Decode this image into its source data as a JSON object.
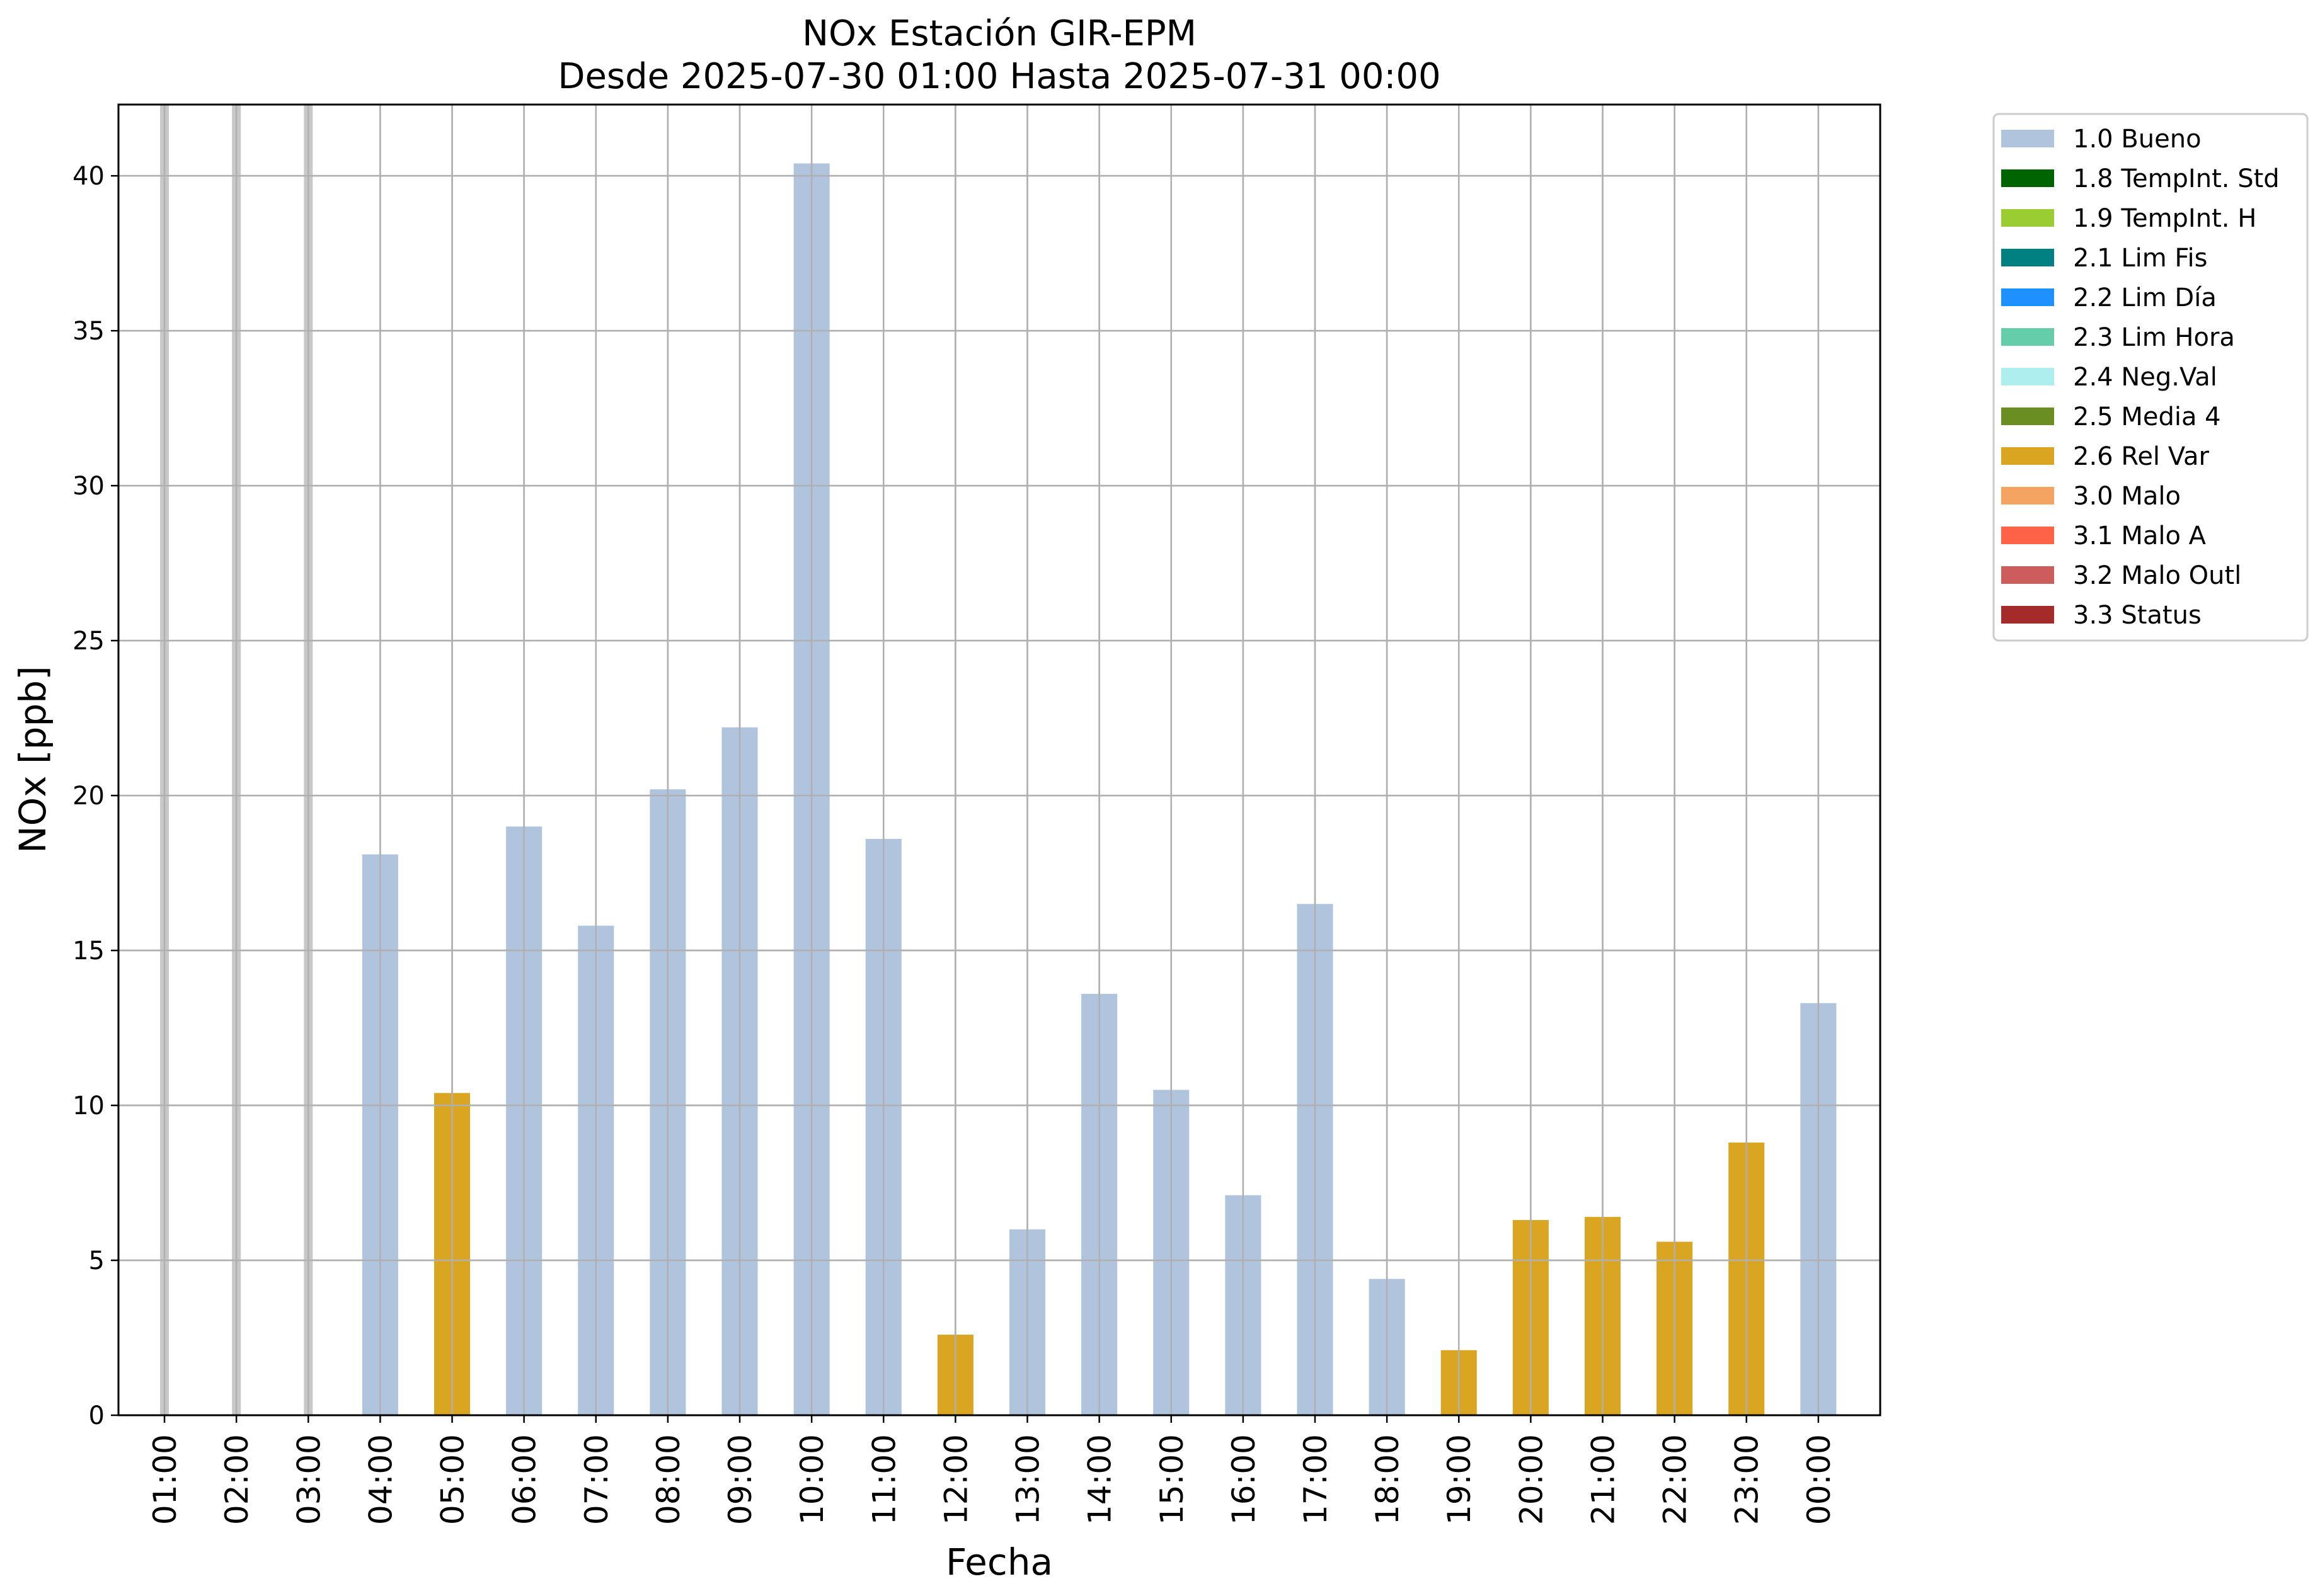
{
  "chart_data": {
    "type": "bar",
    "title": "NOx Estación GIR-EPM",
    "subtitle": "Desde 2025-07-30 01:00 Hasta 2025-07-31 00:00",
    "xlabel": "Fecha",
    "ylabel": "NOx [ppb]",
    "ylim": [
      0,
      42.3
    ],
    "yticks": [
      "0",
      "5",
      "10",
      "15",
      "20",
      "25",
      "30",
      "35",
      "40"
    ],
    "grid": true,
    "legend_position": "outside-top-right",
    "categories": [
      "01:00",
      "02:00",
      "03:00",
      "04:00",
      "05:00",
      "06:00",
      "07:00",
      "08:00",
      "09:00",
      "10:00",
      "11:00",
      "12:00",
      "13:00",
      "14:00",
      "15:00",
      "16:00",
      "17:00",
      "18:00",
      "19:00",
      "20:00",
      "21:00",
      "22:00",
      "23:00",
      "00:00"
    ],
    "values": [
      null,
      null,
      null,
      18.1,
      10.4,
      19.0,
      15.8,
      20.2,
      22.2,
      40.4,
      18.6,
      2.6,
      6.0,
      13.6,
      10.5,
      7.1,
      16.5,
      4.4,
      2.1,
      6.3,
      6.4,
      5.6,
      8.8,
      13.3
    ],
    "flags": [
      "",
      "",
      "",
      "1.0 Bueno",
      "2.6 Rel Var",
      "1.0 Bueno",
      "1.0 Bueno",
      "1.0 Bueno",
      "1.0 Bueno",
      "1.0 Bueno",
      "1.0 Bueno",
      "2.6 Rel Var",
      "1.0 Bueno",
      "1.0 Bueno",
      "1.0 Bueno",
      "1.0 Bueno",
      "1.0 Bueno",
      "1.0 Bueno",
      "2.6 Rel Var",
      "2.6 Rel Var",
      "2.6 Rel Var",
      "2.6 Rel Var",
      "2.6 Rel Var",
      "1.0 Bueno"
    ],
    "missing_marker_color": "#c8c8c8",
    "legend": [
      {
        "label": "1.0 Bueno",
        "color": "#b0c4de"
      },
      {
        "label": "1.8 TempInt. Std",
        "color": "#006400"
      },
      {
        "label": "1.9 TempInt. H",
        "color": "#9acd32"
      },
      {
        "label": "2.1 Lim Fis",
        "color": "#008080"
      },
      {
        "label": "2.2 Lim Día",
        "color": "#1e90ff"
      },
      {
        "label": "2.3 Lim Hora",
        "color": "#66cdaa"
      },
      {
        "label": "2.4 Neg.Val",
        "color": "#afeeee"
      },
      {
        "label": "2.5 Media 4",
        "color": "#6b8e23"
      },
      {
        "label": "2.6 Rel Var",
        "color": "#daa520"
      },
      {
        "label": "3.0 Malo",
        "color": "#f4a460"
      },
      {
        "label": "3.1 Malo A",
        "color": "#ff6347"
      },
      {
        "label": "3.2 Malo Outl",
        "color": "#cd5c5c"
      },
      {
        "label": "3.3 Status",
        "color": "#a52a2a"
      }
    ]
  }
}
